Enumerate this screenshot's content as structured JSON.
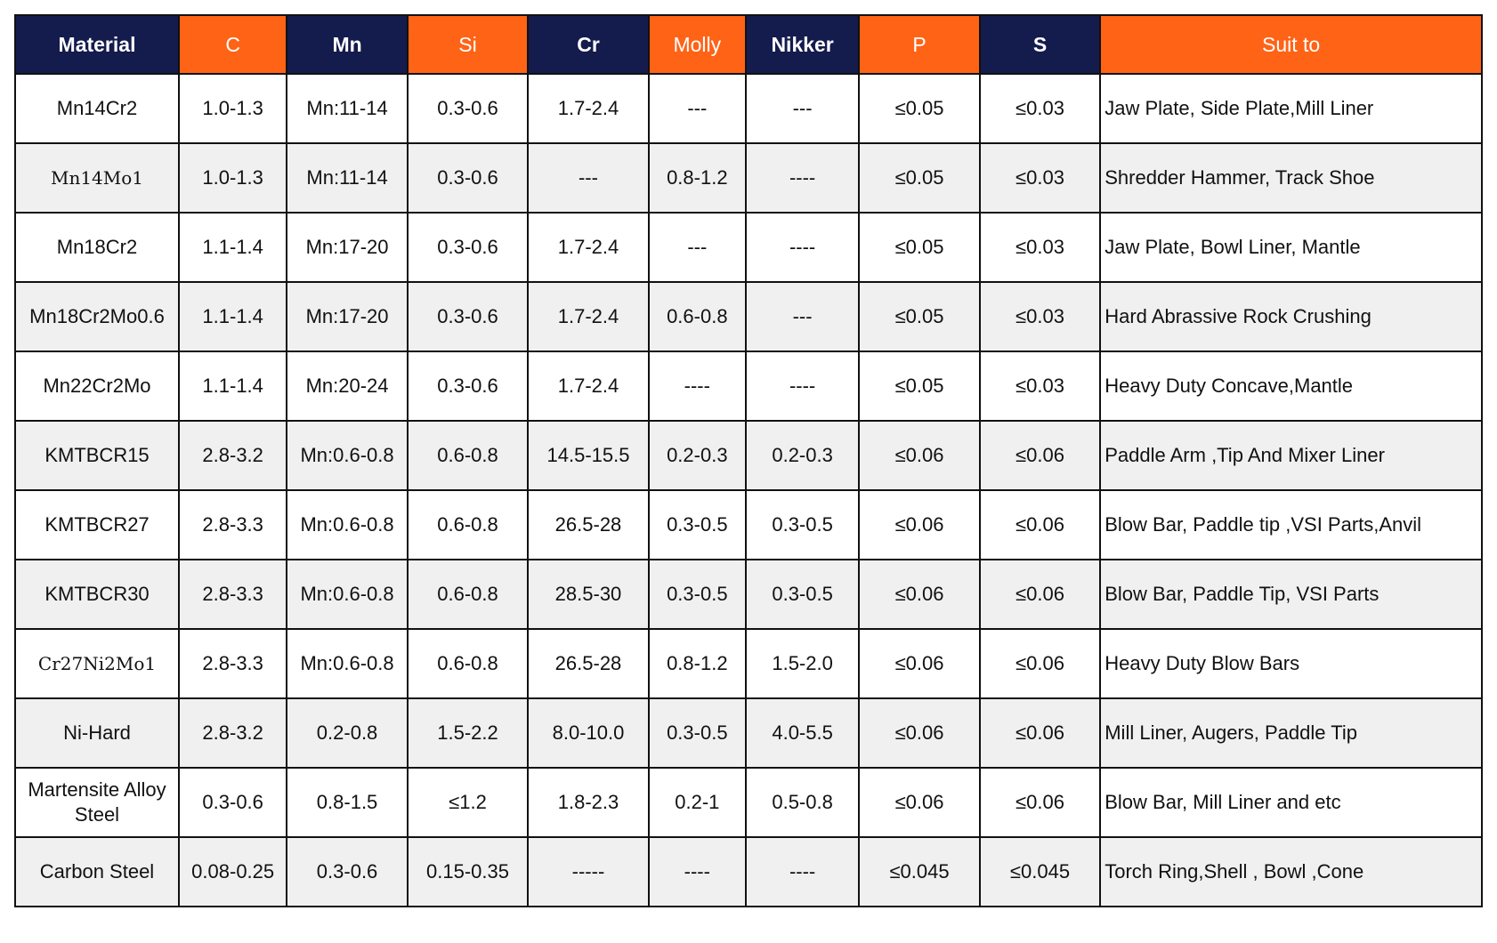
{
  "colors": {
    "header_navy": "#141b4d",
    "header_orange": "#ff6316",
    "alt_row": "#f0f0f0"
  },
  "headers": [
    "Material",
    "C",
    "Mn",
    "Si",
    "Cr",
    "Molly",
    "Nikker",
    "P",
    "S",
    "Suit to"
  ],
  "rows": [
    [
      "Mn14Cr2",
      "1.0-1.3",
      "Mn:11-14",
      "0.3-0.6",
      "1.7-2.4",
      "---",
      "---",
      "≤0.05",
      "≤0.03",
      "Jaw Plate, Side Plate,Mill Liner"
    ],
    [
      "Mn14Mo1",
      "1.0-1.3",
      "Mn:11-14",
      "0.3-0.6",
      "---",
      "0.8-1.2",
      "----",
      "≤0.05",
      "≤0.03",
      "Shredder Hammer, Track Shoe"
    ],
    [
      "Mn18Cr2",
      "1.1-1.4",
      "Mn:17-20",
      "0.3-0.6",
      "1.7-2.4",
      "---",
      "----",
      "≤0.05",
      "≤0.03",
      "Jaw Plate, Bowl Liner, Mantle"
    ],
    [
      "Mn18Cr2Mo0.6",
      "1.1-1.4",
      "Mn:17-20",
      "0.3-0.6",
      "1.7-2.4",
      "0.6-0.8",
      "---",
      "≤0.05",
      "≤0.03",
      "Hard Abrassive Rock Crushing"
    ],
    [
      "Mn22Cr2Mo",
      "1.1-1.4",
      "Mn:20-24",
      "0.3-0.6",
      "1.7-2.4",
      "----",
      "----",
      "≤0.05",
      "≤0.03",
      "Heavy Duty Concave,Mantle"
    ],
    [
      "KMTBCR15",
      "2.8-3.2",
      "Mn:0.6-0.8",
      "0.6-0.8",
      "14.5-15.5",
      "0.2-0.3",
      "0.2-0.3",
      "≤0.06",
      "≤0.06",
      "Paddle Arm ,Tip And Mixer Liner"
    ],
    [
      "KMTBCR27",
      "2.8-3.3",
      "Mn:0.6-0.8",
      "0.6-0.8",
      "26.5-28",
      "0.3-0.5",
      "0.3-0.5",
      "≤0.06",
      "≤0.06",
      "Blow Bar, Paddle tip ,VSI Parts,Anvil"
    ],
    [
      "KMTBCR30",
      "2.8-3.3",
      "Mn:0.6-0.8",
      "0.6-0.8",
      "28.5-30",
      "0.3-0.5",
      "0.3-0.5",
      "≤0.06",
      "≤0.06",
      "Blow Bar, Paddle Tip, VSI Parts"
    ],
    [
      "Cr27Ni2Mo1",
      "2.8-3.3",
      "Mn:0.6-0.8",
      "0.6-0.8",
      "26.5-28",
      "0.8-1.2",
      "1.5-2.0",
      "≤0.06",
      "≤0.06",
      "Heavy Duty Blow Bars"
    ],
    [
      "Ni-Hard",
      "2.8-3.2",
      "0.2-0.8",
      "1.5-2.2",
      "8.0-10.0",
      "0.3-0.5",
      "4.0-5.5",
      "≤0.06",
      "≤0.06",
      "Mill Liner, Augers, Paddle Tip"
    ],
    [
      "Martensite Alloy Steel",
      "0.3-0.6",
      "0.8-1.5",
      "≤1.2",
      "1.8-2.3",
      "0.2-1",
      "0.5-0.8",
      "≤0.06",
      "≤0.06",
      "Blow Bar, Mill Liner and etc"
    ],
    [
      "Carbon Steel",
      "0.08-0.25",
      "0.3-0.6",
      "0.15-0.35",
      "-----",
      "----",
      "----",
      "≤0.045",
      "≤0.045",
      "Torch Ring,Shell , Bowl ,Cone"
    ]
  ]
}
